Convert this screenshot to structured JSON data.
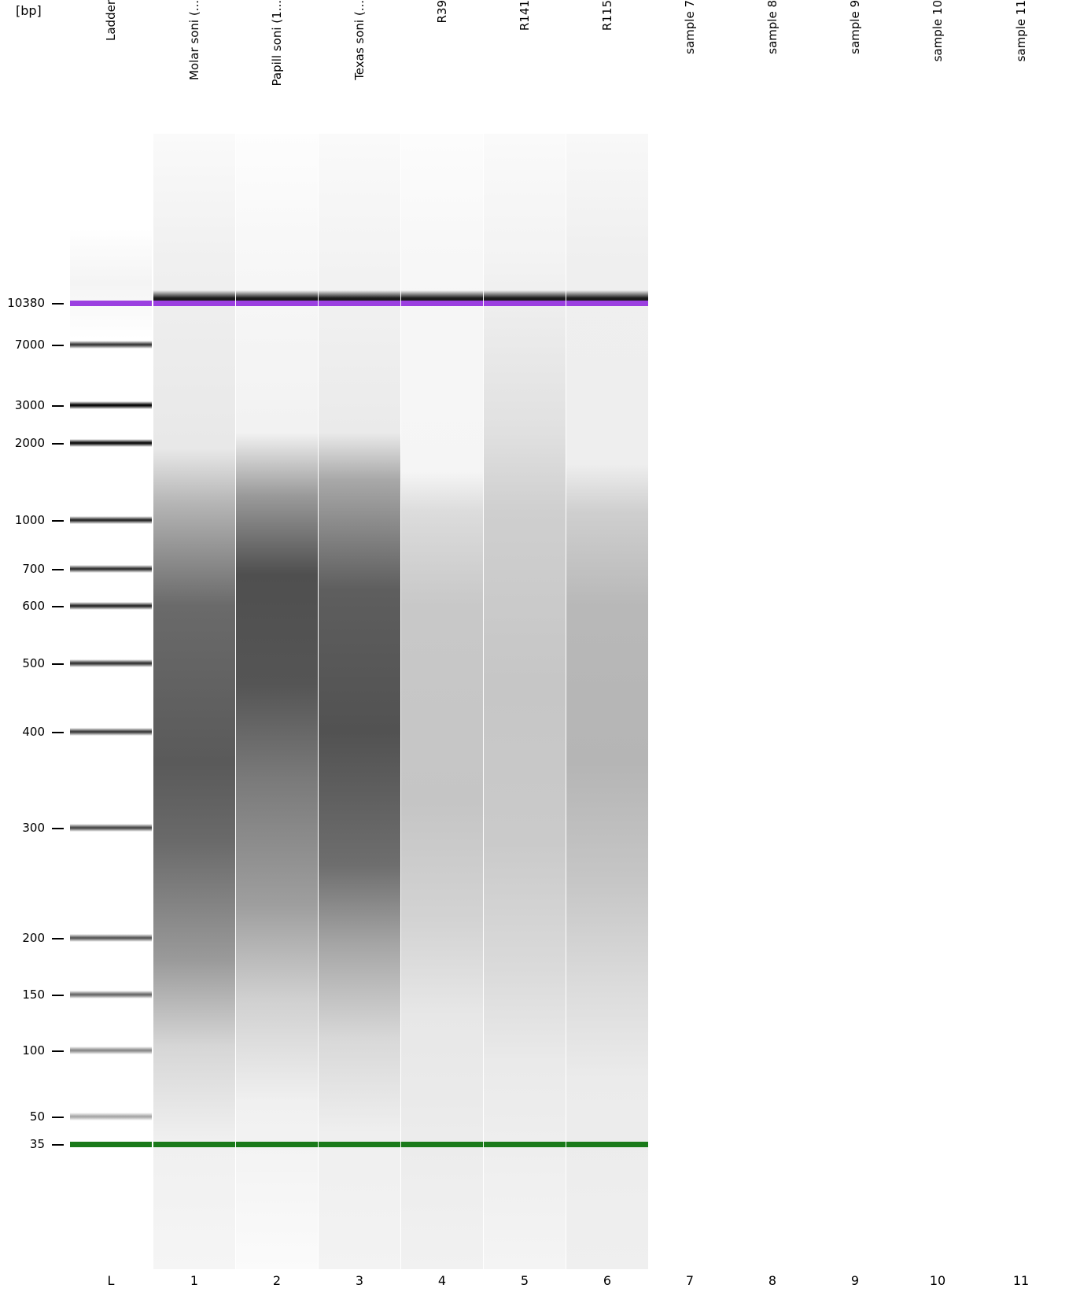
{
  "gel": {
    "unit_label": "[bp]",
    "lane_headers": [
      "Ladder",
      "Molar soni (...",
      "Papill soni (1...",
      "Texas soni (...",
      "R39",
      "R141",
      "R115",
      "sample 7",
      "sample 8",
      "sample 9",
      "sample 10",
      "sample 11"
    ],
    "lane_numbers": [
      "L",
      "1",
      "2",
      "3",
      "4",
      "5",
      "6",
      "7",
      "8",
      "9",
      "10",
      "11"
    ],
    "size_markers": [
      "10380",
      "7000",
      "3000",
      "2000",
      "1000",
      "700",
      "600",
      "500",
      "400",
      "300",
      "200",
      "150",
      "100",
      "50",
      "35"
    ],
    "colors": {
      "upper_marker": "#9b3fe0",
      "lower_marker": "#1a7a1a",
      "band": "#1a1a1a",
      "background": "#ffffff"
    }
  }
}
